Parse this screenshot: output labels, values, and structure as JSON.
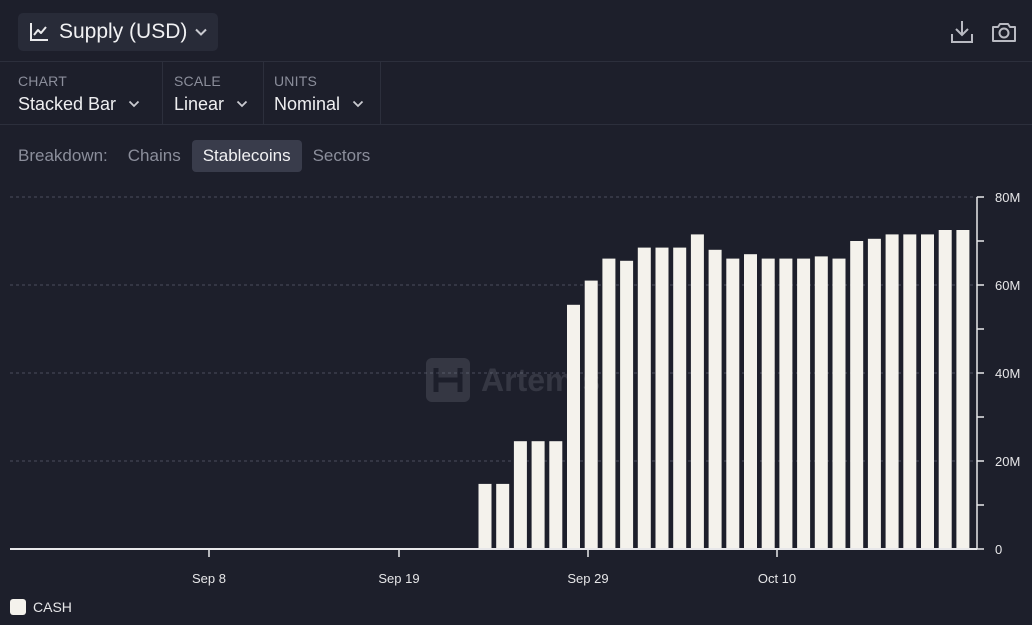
{
  "header": {
    "title": "Supply (USD)",
    "icons": [
      "line-chart-icon",
      "chevron-down-icon",
      "download-icon",
      "camera-icon"
    ]
  },
  "controls": [
    {
      "label": "CHART",
      "value": "Stacked Bar"
    },
    {
      "label": "SCALE",
      "value": "Linear"
    },
    {
      "label": "UNITS",
      "value": "Nominal"
    }
  ],
  "breakdown": {
    "label": "Breakdown:",
    "options": [
      "Chains",
      "Stablecoins",
      "Sectors"
    ],
    "selected": "Stablecoins"
  },
  "watermark": "Artemis",
  "chart_data": {
    "type": "bar",
    "stacked": true,
    "x_tick_labels": [
      "Sep 8",
      "Sep 19",
      "Sep 29",
      "Oct 10"
    ],
    "y_tick_labels": [
      "80M",
      "60M",
      "40M",
      "20M",
      "0"
    ],
    "ylim": [
      0,
      80000000
    ],
    "y_axis_position": "right",
    "grid": "horizontal dashed",
    "legend": "bottom-left",
    "series": [
      {
        "name": "CASH",
        "color": "#f4f2ec",
        "values": [
          14.8,
          14.8,
          24.5,
          24.5,
          24.5,
          55.5,
          61,
          66,
          65.5,
          68.5,
          68.5,
          68.5,
          71.5,
          68,
          66,
          67,
          66,
          66,
          66,
          66.5,
          66,
          70,
          70.5,
          71.5,
          71.5,
          71.5,
          72.5,
          72.5
        ]
      }
    ],
    "value_unit": "millions USD",
    "first_bar_date": "Sep 24",
    "last_bar_date": "Oct 21"
  },
  "colors": {
    "background": "#1d1f2b",
    "panel": "#282b38",
    "active_chip": "#393c4b",
    "bar": "#f4f2ec",
    "grid": "#4a4d5c",
    "muted_text": "#8b8e9b"
  }
}
